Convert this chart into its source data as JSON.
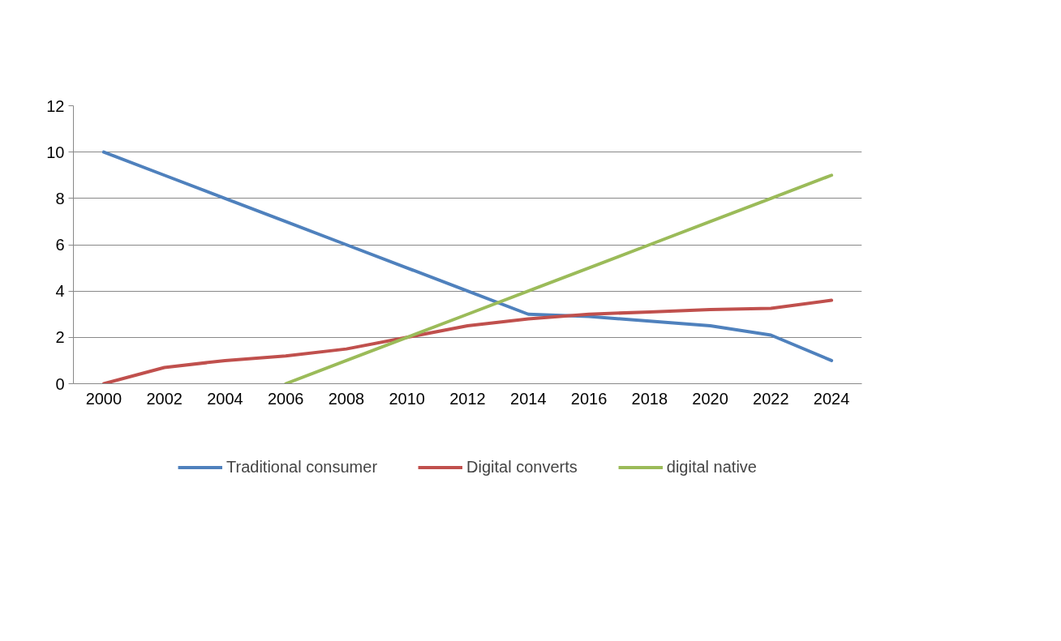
{
  "chart_data": {
    "type": "line",
    "categories": [
      "2000",
      "2002",
      "2004",
      "2006",
      "2008",
      "2010",
      "2012",
      "2014",
      "2016",
      "2018",
      "2020",
      "2022",
      "2024"
    ],
    "series": [
      {
        "name": "Traditional consumer",
        "color": "#4f81bd",
        "values": [
          10,
          9,
          8,
          7,
          6,
          5,
          4,
          3,
          2.9,
          2.7,
          2.5,
          2.1,
          1
        ]
      },
      {
        "name": "Digital converts",
        "color": "#c0504d",
        "values": [
          0,
          0.7,
          1.0,
          1.2,
          1.5,
          2.0,
          2.5,
          2.8,
          3.0,
          3.1,
          3.2,
          3.25,
          3.6
        ]
      },
      {
        "name": "digital native",
        "color": "#9bbb59",
        "values": [
          null,
          null,
          null,
          0,
          1,
          2,
          3,
          4,
          5,
          6,
          7,
          8,
          9
        ]
      }
    ],
    "ylim": [
      0,
      12
    ],
    "yticks": [
      0,
      2,
      4,
      6,
      8,
      10,
      12
    ],
    "grid": "y",
    "legend": "bottom",
    "marker": "none",
    "line_style": "solid"
  }
}
